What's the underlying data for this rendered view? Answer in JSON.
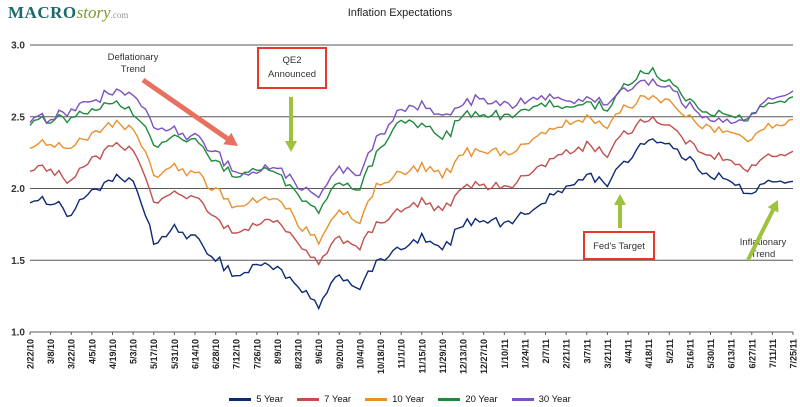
{
  "logo": {
    "macro": "MACRO",
    "story": "story",
    "com": ".com"
  },
  "title": "Inflation Expectations",
  "chart_data": {
    "type": "line",
    "title": "Inflation Expectations",
    "x_tick_labels": [
      "2/22/10",
      "3/8/10",
      "3/22/10",
      "4/5/10",
      "4/19/10",
      "5/3/10",
      "5/17/10",
      "5/31/10",
      "6/14/10",
      "6/28/10",
      "7/12/10",
      "7/26/10",
      "8/9/10",
      "8/23/10",
      "9/6/10",
      "9/20/10",
      "10/4/10",
      "10/18/10",
      "11/1/10",
      "11/15/10",
      "11/29/10",
      "12/13/10",
      "12/27/10",
      "1/10/11",
      "1/24/11",
      "2/7/11",
      "2/21/11",
      "3/7/11",
      "3/21/11",
      "4/4/11",
      "4/18/11",
      "5/2/11",
      "5/16/11",
      "5/30/11",
      "6/13/11",
      "6/27/11",
      "7/11/11",
      "7/25/11"
    ],
    "ylim": [
      1.0,
      3.0
    ],
    "yticks": [
      1.0,
      1.5,
      2.0,
      2.5,
      3.0
    ],
    "grid": "horizontal-solid",
    "legend_position": "bottom",
    "series": [
      {
        "name": "5 Year",
        "color": "#0E2A75",
        "values": [
          1.9,
          1.92,
          1.82,
          2.0,
          2.05,
          2.08,
          1.62,
          1.72,
          1.65,
          1.52,
          1.38,
          1.47,
          1.46,
          1.3,
          1.18,
          1.4,
          1.32,
          1.52,
          1.57,
          1.65,
          1.58,
          1.75,
          1.8,
          1.75,
          1.82,
          1.92,
          2.0,
          2.1,
          2.04,
          2.2,
          2.36,
          2.3,
          2.18,
          2.1,
          2.04,
          1.96,
          2.06,
          2.05
        ]
      },
      {
        "name": "7 Year",
        "color": "#C0504D",
        "values": [
          2.12,
          2.14,
          2.05,
          2.22,
          2.28,
          2.28,
          1.9,
          1.97,
          1.92,
          1.8,
          1.68,
          1.76,
          1.78,
          1.6,
          1.48,
          1.66,
          1.6,
          1.78,
          1.84,
          1.9,
          1.84,
          2.0,
          2.04,
          2.0,
          2.08,
          2.18,
          2.24,
          2.3,
          2.24,
          2.4,
          2.5,
          2.44,
          2.3,
          2.24,
          2.18,
          2.14,
          2.24,
          2.26
        ]
      },
      {
        "name": "10 Year",
        "color": "#E8912D",
        "values": [
          2.28,
          2.32,
          2.28,
          2.38,
          2.44,
          2.42,
          2.1,
          2.15,
          2.1,
          2.0,
          1.86,
          1.92,
          1.95,
          1.74,
          1.62,
          1.84,
          1.78,
          2.05,
          2.1,
          2.15,
          2.08,
          2.24,
          2.28,
          2.24,
          2.3,
          2.4,
          2.44,
          2.5,
          2.44,
          2.58,
          2.66,
          2.6,
          2.48,
          2.44,
          2.38,
          2.34,
          2.44,
          2.48
        ]
      },
      {
        "name": "20 Year",
        "color": "#1E8A3C",
        "values": [
          2.44,
          2.48,
          2.5,
          2.55,
          2.58,
          2.54,
          2.3,
          2.36,
          2.32,
          2.2,
          2.08,
          2.14,
          2.12,
          1.94,
          1.84,
          2.05,
          2.0,
          2.3,
          2.48,
          2.44,
          2.34,
          2.5,
          2.54,
          2.5,
          2.54,
          2.6,
          2.56,
          2.6,
          2.56,
          2.74,
          2.84,
          2.74,
          2.6,
          2.54,
          2.5,
          2.5,
          2.6,
          2.64
        ]
      },
      {
        "name": "30 Year",
        "color": "#7B52C1",
        "values": [
          2.46,
          2.5,
          2.55,
          2.62,
          2.66,
          2.66,
          2.44,
          2.4,
          2.36,
          2.26,
          2.1,
          2.12,
          2.16,
          2.0,
          1.94,
          2.15,
          2.1,
          2.38,
          2.54,
          2.58,
          2.5,
          2.58,
          2.64,
          2.58,
          2.6,
          2.64,
          2.6,
          2.64,
          2.6,
          2.7,
          2.76,
          2.7,
          2.56,
          2.5,
          2.46,
          2.5,
          2.64,
          2.68
        ]
      }
    ],
    "annotations": [
      {
        "lines": [
          "Deflationary",
          "Trend"
        ],
        "boxed": false,
        "arrow_color": "#E8705F"
      },
      {
        "lines": [
          "QE2",
          "Announced"
        ],
        "boxed": true,
        "box_border_color": "#E6392E",
        "arrow_color": "#9DC23C"
      },
      {
        "lines": [
          "Fed's Target"
        ],
        "boxed": true,
        "box_border_color": "#E6392E",
        "arrow_color": "#9DC23C"
      },
      {
        "lines": [
          "Inflationary",
          "Trend"
        ],
        "boxed": false,
        "arrow_color": "#9DC23C"
      }
    ]
  }
}
